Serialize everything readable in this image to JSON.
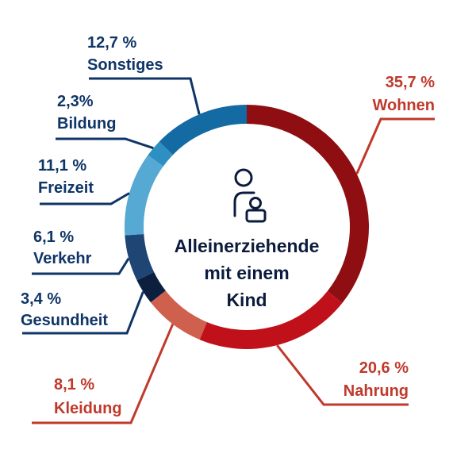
{
  "colors": {
    "red_label": "#c0392b",
    "blue_label": "#0f3566",
    "center_text": "#0b1b3d"
  },
  "center": {
    "icon": "person-with-child-icon",
    "lines": [
      "Alleinerziehende",
      "mit einem",
      "Kind"
    ]
  },
  "chart_data": {
    "type": "pie",
    "donut": true,
    "unit": "%",
    "slices": [
      {
        "name": "Wohnen",
        "value": 35.7,
        "pct_label": "35,7 %",
        "color": "#8e0e12"
      },
      {
        "name": "Nahrung",
        "value": 20.6,
        "pct_label": "20,6 %",
        "color": "#c0111b"
      },
      {
        "name": "Kleidung",
        "value": 8.1,
        "pct_label": "8,1 %",
        "color": "#d0604e"
      },
      {
        "name": "Gesundheit",
        "value": 3.4,
        "pct_label": "3,4 %",
        "color": "#0c1f3f"
      },
      {
        "name": "Verkehr",
        "value": 6.1,
        "pct_label": "6,1 %",
        "color": "#1f4575"
      },
      {
        "name": "Freizeit",
        "value": 11.1,
        "pct_label": "11,1 %",
        "color": "#56a9d2"
      },
      {
        "name": "Bildung",
        "value": 2.3,
        "pct_label": "2,3%",
        "color": "#2e8fc2"
      },
      {
        "name": "Sonstiges",
        "value": 12.7,
        "pct_label": "12,7 %",
        "color": "#146aa3"
      }
    ]
  }
}
